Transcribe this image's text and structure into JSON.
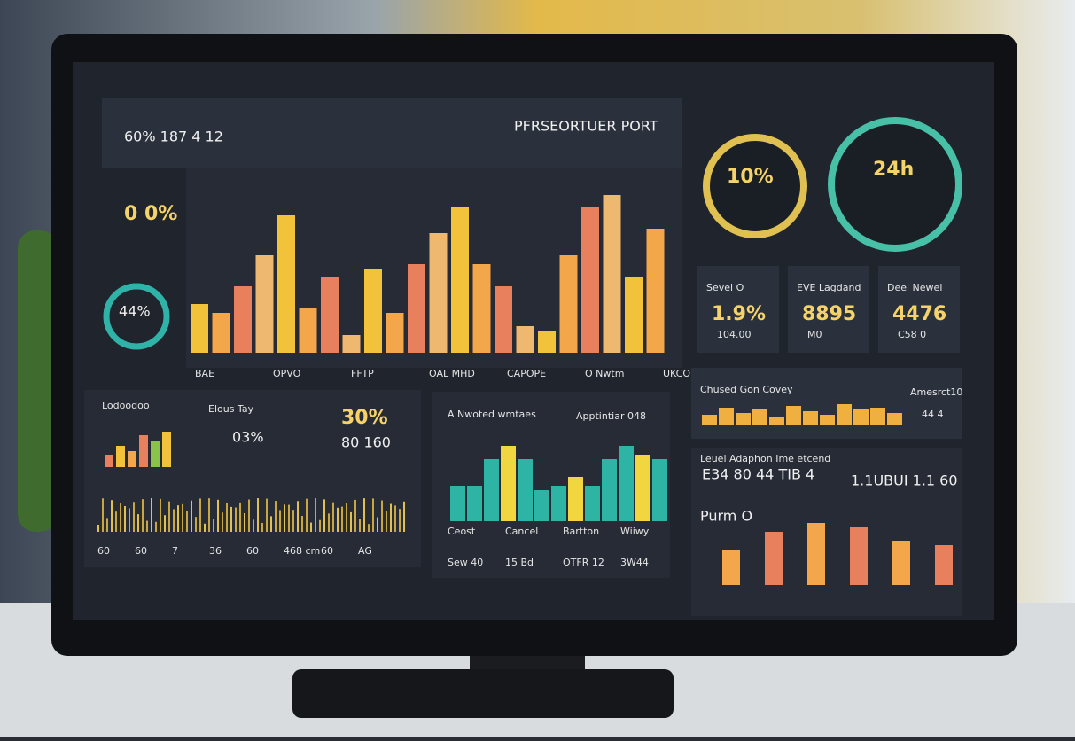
{
  "header": {
    "stats": "60% 187 4 12",
    "title": "PFRSEORTUER PORT"
  },
  "left_panel": {
    "gauge_value": "0 0%",
    "ring_value": "44%"
  },
  "main_chart": {
    "labels": [
      "BAE",
      "OPVO",
      "FFTP",
      "OAL MHD",
      "CAPOPE",
      "O Nwtm",
      "UKCO Omvd"
    ]
  },
  "gauges": [
    {
      "value": "10%"
    },
    {
      "value": "24h"
    }
  ],
  "kpis": [
    {
      "label": "Sevel O",
      "value": "1.9%",
      "sub": "104.00"
    },
    {
      "label": "EVE Lagdand",
      "value": "8895",
      "sub": "M0"
    },
    {
      "label": "Deel Newel",
      "value": "4476",
      "sub": "C58 0"
    }
  ],
  "lower_left": {
    "title": "Lodoodoo",
    "check": "Elous Tay",
    "percent": "30%",
    "small": "03%",
    "pair": "80 160",
    "labels": [
      "60",
      "60",
      "7",
      "36",
      "60",
      "468 cm",
      "60",
      "AG"
    ]
  },
  "lower_middle": {
    "title": "A Nwoted wmtaes",
    "check": "Apptintiar 048",
    "labels": [
      "Ceost",
      "Cancel",
      "Bartton",
      "Wiiwy"
    ],
    "footer": [
      "Sew 40",
      "15 Bd",
      "OTFR 12",
      "3W44"
    ]
  },
  "right_lower": {
    "title": "Chused Gon Covey",
    "side": "Amesrct10",
    "side_value": "44 4",
    "subtitle": "Leuel Adaphon Ime etcend",
    "left_value": "E34 80 44 TIB 4",
    "right_value": "1.1UBUI 1.1 60",
    "label": "Purm O"
  }
}
